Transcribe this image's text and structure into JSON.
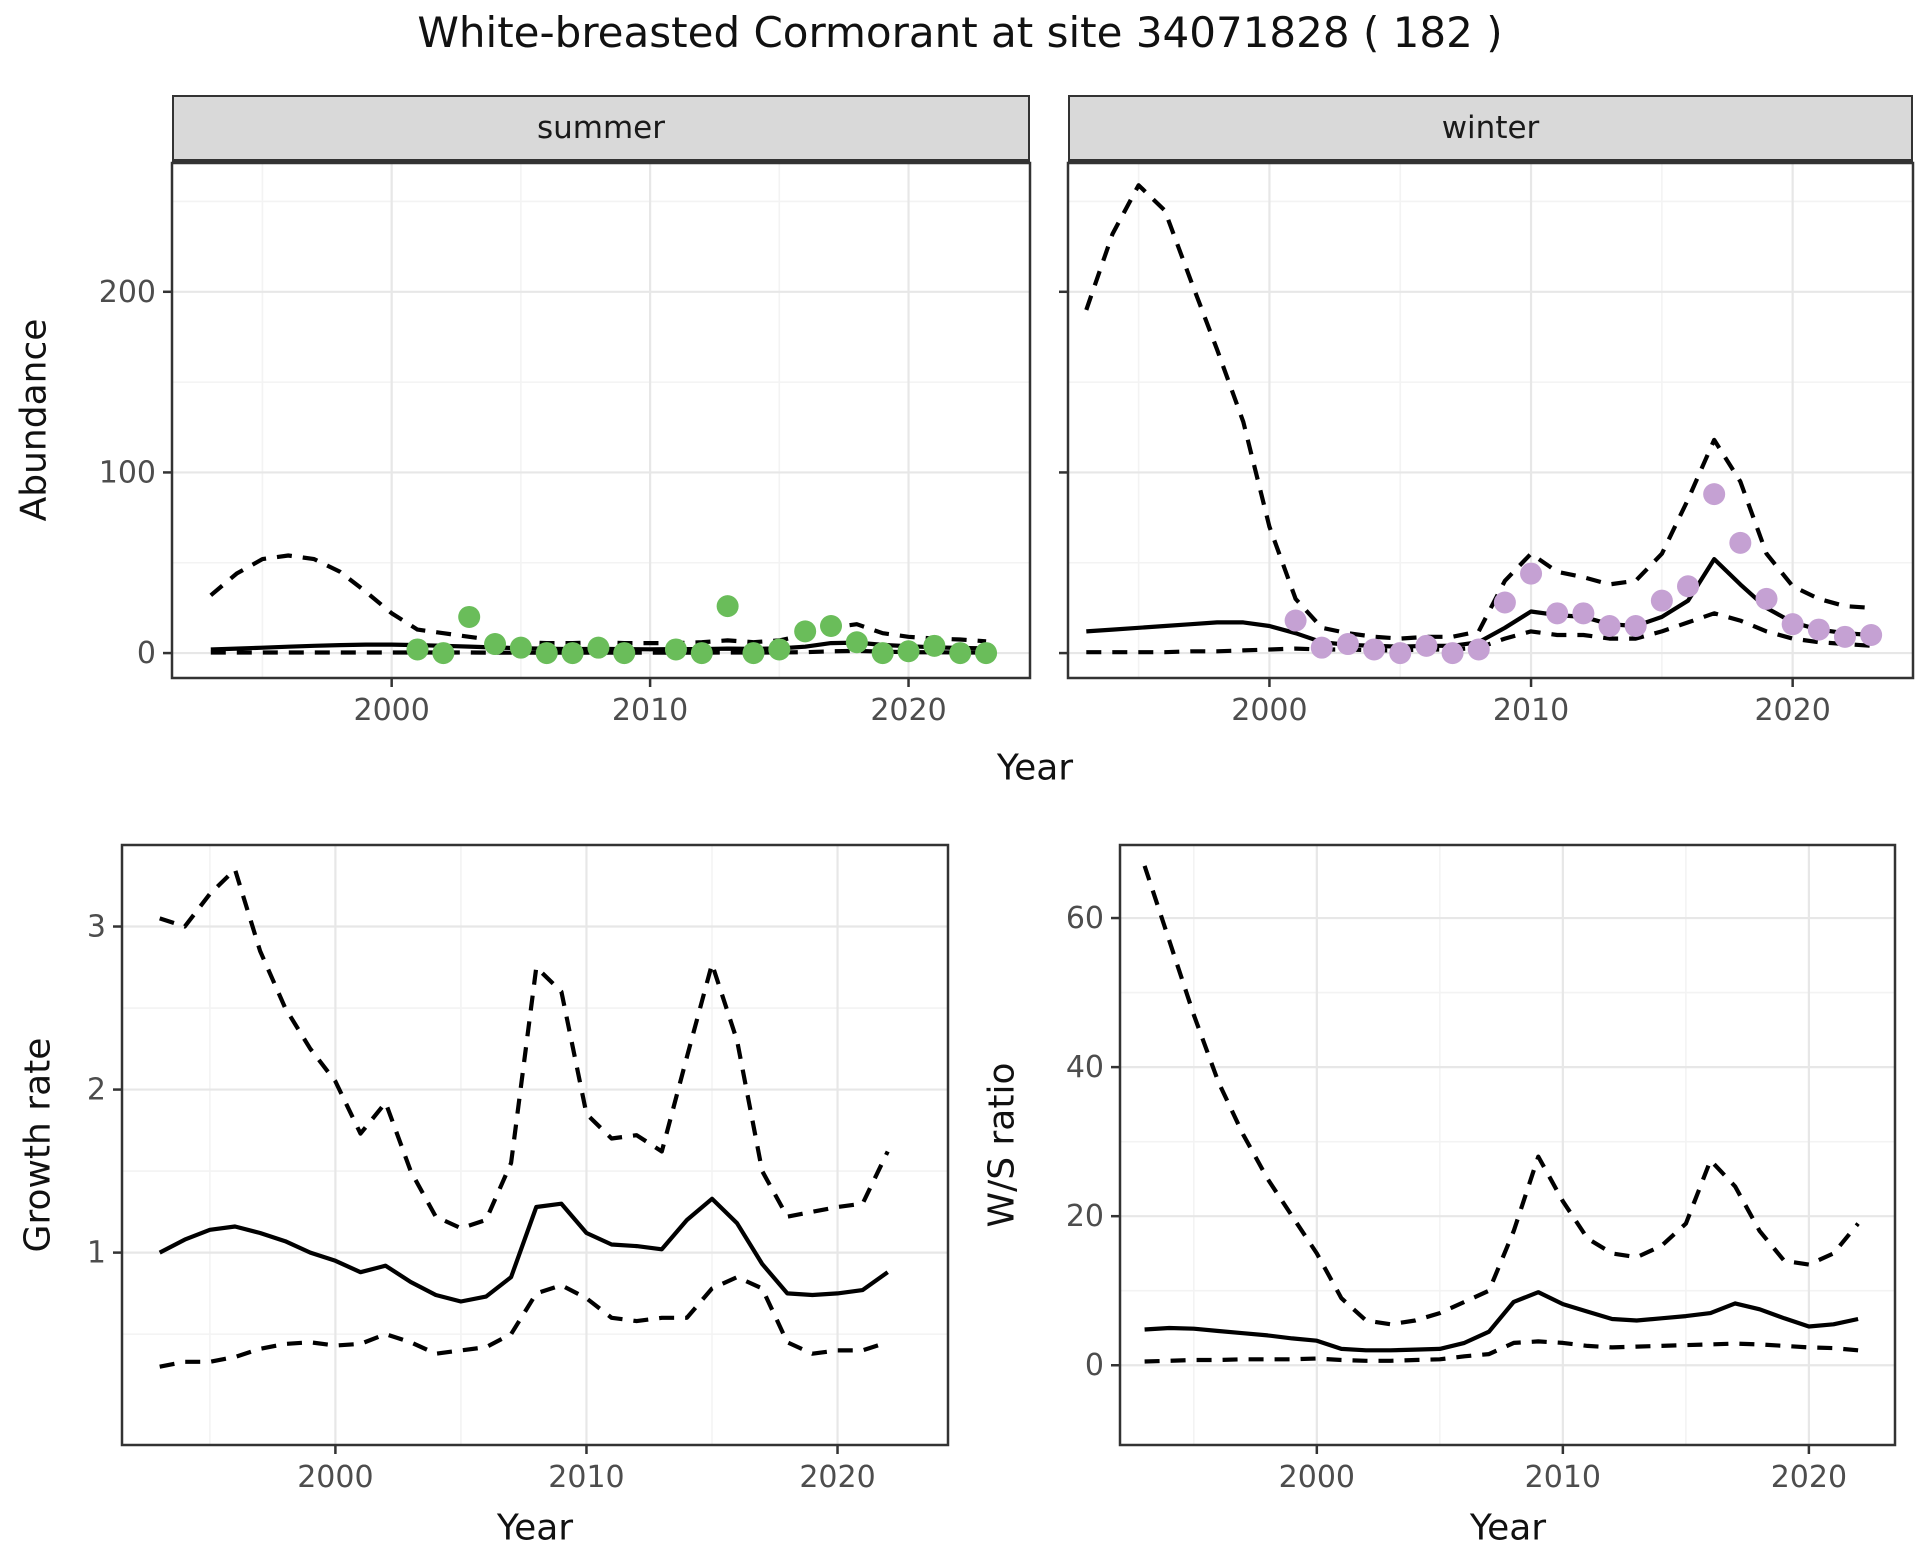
{
  "title": "White-breasted Cormorant at site 34071828 ( 182 )",
  "facet_labels": {
    "summer": "summer",
    "winter": "winter"
  },
  "axis_titles": {
    "abundance": "Abundance",
    "year_top": "Year",
    "growth_rate": "Growth rate",
    "ws_ratio": "W/S ratio",
    "year_bottom_left": "Year",
    "year_bottom_right": "Year"
  },
  "colors": {
    "summer_points": "#6abd5a",
    "winter_points": "#c5a1d3",
    "line": "#000000",
    "strip_bg": "#d9d9d9",
    "grid_major": "#e7e7e7",
    "grid_minor": "#f3f3f3",
    "panel_border": "#333333",
    "axis_text": "#4d4d4d"
  },
  "chart_data": [
    {
      "type": "line",
      "panel": "summer",
      "title": "summer",
      "xlabel": "Year",
      "ylabel": "Abundance",
      "xlim": [
        1991.5,
        2024.7
      ],
      "ylim": [
        -13.8,
        271.3
      ],
      "x_ticks": [
        2000,
        2010,
        2020
      ],
      "x_minor": [
        1995,
        2005,
        2015
      ],
      "y_ticks": [
        0,
        100,
        200
      ],
      "y_minor": [
        50,
        150,
        250
      ],
      "show_y_labels": true,
      "grid": true,
      "legend": "none",
      "series": [
        {
          "name": "fit",
          "style": "solid",
          "color": "#000000",
          "x": [
            1993,
            1994,
            1995,
            1996,
            1997,
            1998,
            1999,
            2000,
            2001,
            2002,
            2003,
            2004,
            2005,
            2006,
            2007,
            2008,
            2009,
            2010,
            2011,
            2012,
            2013,
            2014,
            2015,
            2016,
            2017,
            2018,
            2019,
            2020,
            2021,
            2022,
            2023
          ],
          "y": [
            2,
            2.5,
            3,
            3.5,
            4,
            4.4,
            4.7,
            4.7,
            4.4,
            4,
            3.6,
            3.1,
            2.7,
            2.4,
            2.2,
            2.3,
            2.2,
            2.1,
            2.2,
            2.2,
            2.5,
            2.3,
            2.6,
            3.5,
            5.5,
            5.8,
            4.5,
            3.8,
            3.2,
            2.8,
            2.6
          ]
        },
        {
          "name": "upper_ci",
          "style": "dashed",
          "color": "#000000",
          "x": [
            1993,
            1994,
            1995,
            1996,
            1997,
            1998,
            1999,
            2000,
            2001,
            2002,
            2003,
            2004,
            2005,
            2006,
            2007,
            2008,
            2009,
            2010,
            2011,
            2012,
            2013,
            2014,
            2015,
            2016,
            2017,
            2018,
            2019,
            2020,
            2021,
            2022,
            2023
          ],
          "y": [
            32,
            44,
            52,
            54,
            52,
            45,
            34,
            22,
            13,
            11,
            9,
            7,
            6,
            5.5,
            5.5,
            6,
            5.5,
            5.5,
            5.5,
            6,
            7,
            6,
            7,
            10,
            14,
            16,
            11,
            9,
            8,
            7.5,
            6.5
          ]
        },
        {
          "name": "lower_ci",
          "style": "dashed",
          "color": "#000000",
          "x": [
            1993,
            1994,
            1995,
            1996,
            1997,
            1998,
            1999,
            2000,
            2001,
            2002,
            2003,
            2004,
            2005,
            2006,
            2007,
            2008,
            2009,
            2010,
            2011,
            2012,
            2013,
            2014,
            2015,
            2016,
            2017,
            2018,
            2019,
            2020,
            2021,
            2022,
            2023
          ],
          "y": [
            0.3,
            0.3,
            0.3,
            0.3,
            0.3,
            0.3,
            0.3,
            0.3,
            0.3,
            0.3,
            0.3,
            0.2,
            0.2,
            0.2,
            0.2,
            0.2,
            0.2,
            0.2,
            0.2,
            0.2,
            0.3,
            0.3,
            0.3,
            0.5,
            1,
            1.2,
            0.8,
            0.5,
            0.4,
            0.3,
            0.3
          ]
        },
        {
          "name": "observed",
          "style": "points",
          "color": "#6abd5a",
          "x": [
            2001,
            2002,
            2003,
            2004,
            2005,
            2006,
            2007,
            2008,
            2009,
            2011,
            2012,
            2013,
            2014,
            2015,
            2016,
            2017,
            2018,
            2019,
            2020,
            2021,
            2022,
            2023
          ],
          "y": [
            2,
            0,
            20,
            5,
            3,
            0,
            0,
            3,
            0,
            2,
            0,
            26,
            0,
            2,
            12,
            15,
            6,
            0,
            1,
            4,
            0,
            0
          ]
        }
      ]
    },
    {
      "type": "line",
      "panel": "winter",
      "title": "winter",
      "xlabel": "Year",
      "ylabel": "Abundance",
      "xlim": [
        1992.3,
        2024.6
      ],
      "ylim": [
        -13.8,
        271.3
      ],
      "x_ticks": [
        2000,
        2010,
        2020
      ],
      "x_minor": [
        1995,
        2005,
        2015
      ],
      "y_ticks": [
        0,
        100,
        200
      ],
      "y_minor": [
        50,
        150,
        250
      ],
      "show_y_labels": false,
      "grid": true,
      "legend": "none",
      "series": [
        {
          "name": "fit",
          "style": "solid",
          "color": "#000000",
          "x": [
            1993,
            1994,
            1995,
            1996,
            1997,
            1998,
            1999,
            2000,
            2001,
            2002,
            2003,
            2004,
            2005,
            2006,
            2007,
            2008,
            2009,
            2010,
            2011,
            2012,
            2013,
            2014,
            2015,
            2016,
            2017,
            2018,
            2019,
            2020,
            2021,
            2022,
            2023
          ],
          "y": [
            12,
            13,
            14,
            15,
            16,
            17,
            17,
            15,
            11,
            6,
            4.5,
            4,
            3.5,
            4,
            4,
            6,
            14,
            23,
            21,
            20,
            16,
            15,
            20,
            29,
            52,
            38,
            25,
            17,
            13,
            11,
            10
          ]
        },
        {
          "name": "upper_ci",
          "style": "dashed",
          "color": "#000000",
          "x": [
            1993,
            1994,
            1995,
            1996,
            1997,
            1998,
            1999,
            2000,
            2001,
            2002,
            2003,
            2004,
            2005,
            2006,
            2007,
            2008,
            2009,
            2010,
            2011,
            2012,
            2013,
            2014,
            2015,
            2016,
            2017,
            2018,
            2019,
            2020,
            2021,
            2022,
            2023
          ],
          "y": [
            190,
            232,
            259,
            245,
            206,
            168,
            128,
            70,
            30,
            14,
            11,
            9,
            8,
            9,
            9,
            12,
            40,
            55,
            45,
            42,
            38,
            40,
            55,
            85,
            118,
            95,
            55,
            37,
            30,
            26,
            25
          ]
        },
        {
          "name": "lower_ci",
          "style": "dashed",
          "color": "#000000",
          "x": [
            1993,
            1994,
            1995,
            1996,
            1997,
            1998,
            1999,
            2000,
            2001,
            2002,
            2003,
            2004,
            2005,
            2006,
            2007,
            2008,
            2009,
            2010,
            2011,
            2012,
            2013,
            2014,
            2015,
            2016,
            2017,
            2018,
            2019,
            2020,
            2021,
            2022,
            2023
          ],
          "y": [
            0.5,
            0.5,
            0.5,
            0.5,
            1,
            1,
            1.5,
            2,
            2.5,
            2,
            2,
            1.5,
            1.5,
            2,
            2,
            3,
            8,
            12,
            10,
            10,
            8,
            8,
            12,
            17,
            22,
            18,
            12,
            8,
            6,
            5,
            4
          ]
        },
        {
          "name": "observed",
          "style": "points",
          "color": "#c5a1d3",
          "x": [
            2001,
            2002,
            2003,
            2004,
            2005,
            2006,
            2007,
            2008,
            2009,
            2010,
            2011,
            2012,
            2013,
            2014,
            2015,
            2016,
            2017,
            2018,
            2019,
            2020,
            2021,
            2022,
            2023
          ],
          "y": [
            18,
            3,
            5,
            2,
            0,
            4,
            0,
            2,
            28,
            44,
            22,
            22,
            15,
            15,
            29,
            37,
            88,
            61,
            30,
            16,
            13,
            9,
            10
          ]
        }
      ]
    },
    {
      "type": "line",
      "panel": "growth_rate",
      "title": "",
      "xlabel": "Year",
      "ylabel": "Growth rate",
      "xlim": [
        1991.5,
        2024.4
      ],
      "ylim": [
        -0.18,
        3.5
      ],
      "x_ticks": [
        2000,
        2010,
        2020
      ],
      "x_minor": [
        1995,
        2005,
        2015
      ],
      "y_ticks": [
        1,
        2,
        3
      ],
      "y_minor": [
        0.5,
        1.5,
        2.5,
        3.5
      ],
      "show_y_labels": true,
      "grid": true,
      "legend": "none",
      "series": [
        {
          "name": "fit",
          "style": "solid",
          "color": "#000000",
          "x": [
            1993,
            1994,
            1995,
            1996,
            1997,
            1998,
            1999,
            2000,
            2001,
            2002,
            2003,
            2004,
            2005,
            2006,
            2007,
            2008,
            2009,
            2010,
            2011,
            2012,
            2013,
            2014,
            2015,
            2016,
            2017,
            2018,
            2019,
            2020,
            2021,
            2022
          ],
          "y": [
            1.0,
            1.08,
            1.14,
            1.16,
            1.12,
            1.07,
            1.0,
            0.95,
            0.88,
            0.92,
            0.82,
            0.74,
            0.7,
            0.73,
            0.85,
            1.28,
            1.3,
            1.12,
            1.05,
            1.04,
            1.02,
            1.2,
            1.33,
            1.18,
            0.93,
            0.75,
            0.74,
            0.75,
            0.77,
            0.88
          ]
        },
        {
          "name": "upper_ci",
          "style": "dashed",
          "color": "#000000",
          "x": [
            1993,
            1994,
            1995,
            1996,
            1997,
            1998,
            1999,
            2000,
            2001,
            2002,
            2003,
            2004,
            2005,
            2006,
            2007,
            2008,
            2009,
            2010,
            2011,
            2012,
            2013,
            2014,
            2015,
            2016,
            2017,
            2018,
            2019,
            2020,
            2021,
            2022
          ],
          "y": [
            3.05,
            3.0,
            3.2,
            3.35,
            2.85,
            2.5,
            2.25,
            2.05,
            1.73,
            1.92,
            1.5,
            1.22,
            1.15,
            1.2,
            1.55,
            2.75,
            2.6,
            1.85,
            1.7,
            1.72,
            1.62,
            2.2,
            2.77,
            2.3,
            1.5,
            1.22,
            1.25,
            1.28,
            1.3,
            1.62
          ]
        },
        {
          "name": "lower_ci",
          "style": "dashed",
          "color": "#000000",
          "x": [
            1993,
            1994,
            1995,
            1996,
            1997,
            1998,
            1999,
            2000,
            2001,
            2002,
            2003,
            2004,
            2005,
            2006,
            2007,
            2008,
            2009,
            2010,
            2011,
            2012,
            2013,
            2014,
            2015,
            2016,
            2017,
            2018,
            2019,
            2020,
            2021,
            2022
          ],
          "y": [
            0.3,
            0.33,
            0.33,
            0.36,
            0.41,
            0.44,
            0.45,
            0.43,
            0.44,
            0.5,
            0.45,
            0.38,
            0.4,
            0.42,
            0.5,
            0.75,
            0.8,
            0.72,
            0.6,
            0.58,
            0.6,
            0.6,
            0.78,
            0.85,
            0.78,
            0.45,
            0.38,
            0.4,
            0.4,
            0.45
          ]
        }
      ]
    },
    {
      "type": "line",
      "panel": "ws_ratio",
      "title": "",
      "xlabel": "Year",
      "ylabel": "W/S ratio",
      "xlim": [
        1992.0,
        2023.5
      ],
      "ylim": [
        -10.7,
        69.8
      ],
      "x_ticks": [
        2000,
        2010,
        2020
      ],
      "x_minor": [
        1995,
        2005,
        2015
      ],
      "y_ticks": [
        0,
        20,
        40,
        60
      ],
      "y_minor": [
        10,
        30,
        50
      ],
      "show_y_labels": true,
      "grid": true,
      "legend": "none",
      "series": [
        {
          "name": "fit",
          "style": "solid",
          "color": "#000000",
          "x": [
            1993,
            1994,
            1995,
            1996,
            1997,
            1998,
            1999,
            2000,
            2001,
            2002,
            2003,
            2004,
            2005,
            2006,
            2007,
            2008,
            2009,
            2010,
            2011,
            2012,
            2013,
            2014,
            2015,
            2016,
            2017,
            2018,
            2019,
            2020,
            2021,
            2022
          ],
          "y": [
            4.8,
            5.0,
            4.9,
            4.6,
            4.3,
            4.0,
            3.6,
            3.3,
            2.2,
            2.0,
            2.0,
            2.1,
            2.2,
            3.0,
            4.5,
            8.5,
            9.8,
            8.2,
            7.2,
            6.2,
            6.0,
            6.3,
            6.6,
            7.0,
            8.3,
            7.5,
            6.3,
            5.2,
            5.5,
            6.2
          ]
        },
        {
          "name": "upper_ci",
          "style": "dashed",
          "color": "#000000",
          "x": [
            1993,
            1994,
            1995,
            1996,
            1997,
            1998,
            1999,
            2000,
            2001,
            2002,
            2003,
            2004,
            2005,
            2006,
            2007,
            2008,
            2009,
            2010,
            2011,
            2012,
            2013,
            2014,
            2015,
            2016,
            2017,
            2018,
            2019,
            2020,
            2021,
            2022
          ],
          "y": [
            67,
            57,
            47,
            38,
            31,
            25,
            20,
            15,
            9,
            6,
            5.5,
            6,
            7,
            8.5,
            10,
            18,
            28,
            22,
            17,
            15,
            14.5,
            16,
            19,
            27.5,
            24,
            18,
            14,
            13.5,
            15,
            19
          ]
        },
        {
          "name": "lower_ci",
          "style": "dashed",
          "color": "#000000",
          "x": [
            1993,
            1994,
            1995,
            1996,
            1997,
            1998,
            1999,
            2000,
            2001,
            2002,
            2003,
            2004,
            2005,
            2006,
            2007,
            2008,
            2009,
            2010,
            2011,
            2012,
            2013,
            2014,
            2015,
            2016,
            2017,
            2018,
            2019,
            2020,
            2021,
            2022
          ],
          "y": [
            0.5,
            0.6,
            0.7,
            0.7,
            0.8,
            0.8,
            0.8,
            0.9,
            0.7,
            0.6,
            0.6,
            0.7,
            0.8,
            1.2,
            1.5,
            3.0,
            3.2,
            3.0,
            2.6,
            2.4,
            2.5,
            2.6,
            2.7,
            2.8,
            2.9,
            2.8,
            2.6,
            2.4,
            2.3,
            2.0
          ]
        }
      ]
    }
  ]
}
